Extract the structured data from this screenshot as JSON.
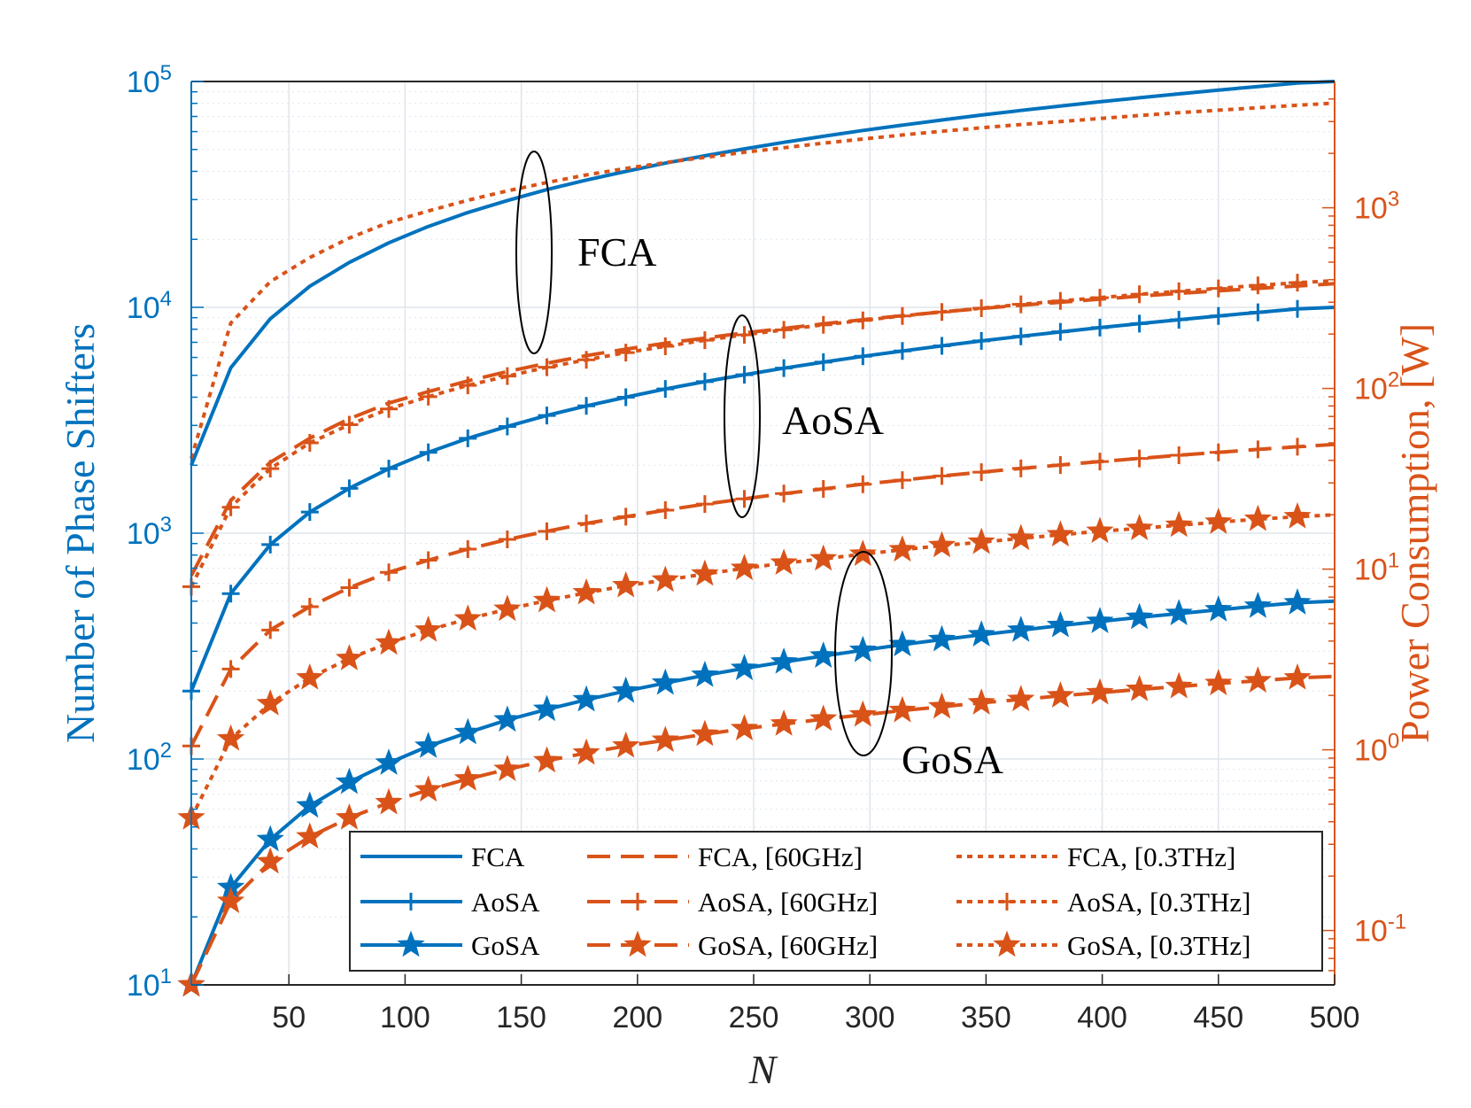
{
  "chart_data": {
    "type": "line",
    "xlabel": "N",
    "ylabel_left": "Number of Phase Shifters",
    "ylabel_right": "Power Consumption, [W]",
    "x_ticks": [
      50,
      100,
      150,
      200,
      250,
      300,
      350,
      400,
      450,
      500
    ],
    "xlim": [
      8,
      500
    ],
    "ylim_left": [
      10,
      100000
    ],
    "ylim_right": [
      0.05,
      5000
    ],
    "y_scale": "log",
    "grid": true,
    "left_ticks": [
      {
        "value": 10,
        "base": "10",
        "exp": "1"
      },
      {
        "value": 100,
        "base": "10",
        "exp": "2"
      },
      {
        "value": 1000,
        "base": "10",
        "exp": "3"
      },
      {
        "value": 10000,
        "base": "10",
        "exp": "4"
      },
      {
        "value": 100000,
        "base": "10",
        "exp": "5"
      }
    ],
    "right_ticks": [
      {
        "value": 0.1,
        "base": "10",
        "exp": "-1"
      },
      {
        "value": 1,
        "base": "10",
        "exp": "0"
      },
      {
        "value": 10,
        "base": "10",
        "exp": "1"
      },
      {
        "value": 100,
        "base": "10",
        "exp": "2"
      },
      {
        "value": 1000,
        "base": "10",
        "exp": "3"
      }
    ],
    "x": [
      8,
      25,
      42,
      59,
      76,
      93,
      110,
      127,
      144,
      161,
      178,
      195,
      212,
      229,
      246,
      263,
      280,
      297,
      314,
      331,
      348,
      365,
      382,
      399,
      416,
      433,
      450,
      467,
      484,
      500
    ],
    "series": [
      {
        "name": "FCA",
        "axis": "left",
        "color": "#0072BD",
        "dash": "solid",
        "marker": "none",
        "values": [
          2000,
          5400,
          8900,
          12400,
          15800,
          19300,
          22800,
          26300,
          29700,
          33200,
          36600,
          40000,
          43500,
          46900,
          50300,
          53800,
          57200,
          60700,
          64100,
          67500,
          71000,
          74400,
          77900,
          81300,
          84700,
          88100,
          91600,
          95000,
          98400,
          100000
        ]
      },
      {
        "name": "AoSA",
        "axis": "left",
        "color": "#0072BD",
        "dash": "solid",
        "marker": "plus",
        "values": [
          200,
          540,
          890,
          1240,
          1580,
          1930,
          2280,
          2630,
          2970,
          3320,
          3660,
          4000,
          4350,
          4690,
          5030,
          5380,
          5720,
          6070,
          6410,
          6750,
          7100,
          7440,
          7790,
          8130,
          8470,
          8810,
          9160,
          9500,
          9840,
          10000
        ]
      },
      {
        "name": "GoSA",
        "axis": "left",
        "color": "#0072BD",
        "dash": "solid",
        "marker": "star",
        "values": [
          10,
          27,
          44,
          62,
          79,
          96,
          114,
          131,
          149,
          166,
          183,
          200,
          217,
          235,
          252,
          269,
          286,
          303,
          321,
          338,
          355,
          372,
          390,
          407,
          424,
          441,
          458,
          475,
          492,
          500
        ]
      },
      {
        "name": "FCA, [60GHz]",
        "axis": "right",
        "color": "#D95319",
        "dash": "dashed",
        "marker": "none",
        "values": [
          9.2,
          24,
          39,
          53,
          68,
          83,
          96,
          110,
          124,
          138,
          152,
          165,
          178,
          190,
          203,
          215,
          228,
          240,
          253,
          265,
          277,
          289,
          300,
          312,
          324,
          336,
          347,
          358,
          369,
          380
        ]
      },
      {
        "name": "AoSA, [60GHz]",
        "axis": "right",
        "color": "#D95319",
        "dash": "dashed",
        "marker": "plus",
        "values": [
          1.05,
          2.8,
          4.6,
          6.2,
          7.9,
          9.6,
          11.2,
          12.9,
          14.6,
          16.2,
          17.9,
          19.5,
          21.2,
          22.9,
          24.5,
          26.2,
          27.8,
          29.5,
          31.1,
          32.8,
          34.4,
          36.1,
          37.7,
          39.4,
          41.0,
          42.7,
          44.3,
          46.0,
          47.6,
          49.0
        ]
      },
      {
        "name": "GoSA, [60GHz]",
        "axis": "right",
        "color": "#D95319",
        "dash": "dashed",
        "marker": "star",
        "values": [
          0.048,
          0.145,
          0.24,
          0.33,
          0.42,
          0.51,
          0.6,
          0.69,
          0.78,
          0.87,
          0.96,
          1.05,
          1.13,
          1.22,
          1.31,
          1.39,
          1.48,
          1.56,
          1.65,
          1.73,
          1.82,
          1.9,
          1.99,
          2.07,
          2.16,
          2.24,
          2.33,
          2.41,
          2.5,
          2.55
        ]
      },
      {
        "name": "FCA, [0.3THz]",
        "axis": "right",
        "color": "#D95319",
        "dash": "dotted",
        "marker": "none",
        "values": [
          41,
          230,
          390,
          530,
          680,
          830,
          960,
          1100,
          1240,
          1380,
          1520,
          1650,
          1780,
          1900,
          2030,
          2150,
          2280,
          2400,
          2530,
          2650,
          2770,
          2890,
          3000,
          3120,
          3240,
          3360,
          3470,
          3580,
          3690,
          3800
        ]
      },
      {
        "name": "AoSA, [0.3THz]",
        "axis": "right",
        "color": "#D95319",
        "dash": "dotted",
        "marker": "plus",
        "values": [
          8.0,
          22,
          36,
          50,
          63,
          77,
          90,
          104,
          117,
          131,
          144,
          158,
          171,
          185,
          198,
          211,
          225,
          238,
          252,
          265,
          278,
          292,
          305,
          318,
          332,
          345,
          358,
          372,
          385,
          395
        ]
      },
      {
        "name": "GoSA, [0.3THz]",
        "axis": "right",
        "color": "#D95319",
        "dash": "dotted",
        "marker": "star",
        "values": [
          0.42,
          1.15,
          1.8,
          2.5,
          3.2,
          3.9,
          4.6,
          5.3,
          6.0,
          6.7,
          7.4,
          8.1,
          8.7,
          9.4,
          10.1,
          10.8,
          11.4,
          12.1,
          12.8,
          13.5,
          14.1,
          14.8,
          15.5,
          16.2,
          16.8,
          17.5,
          18.2,
          18.9,
          19.5,
          20.0
        ]
      }
    ],
    "annotations": [
      "FCA",
      "AoSA",
      "GoSA"
    ],
    "legend_placement": "bottom-right",
    "colors": {
      "left_axis": "#0072BD",
      "right_axis": "#D95319",
      "grid": "#DFE5EC"
    }
  }
}
